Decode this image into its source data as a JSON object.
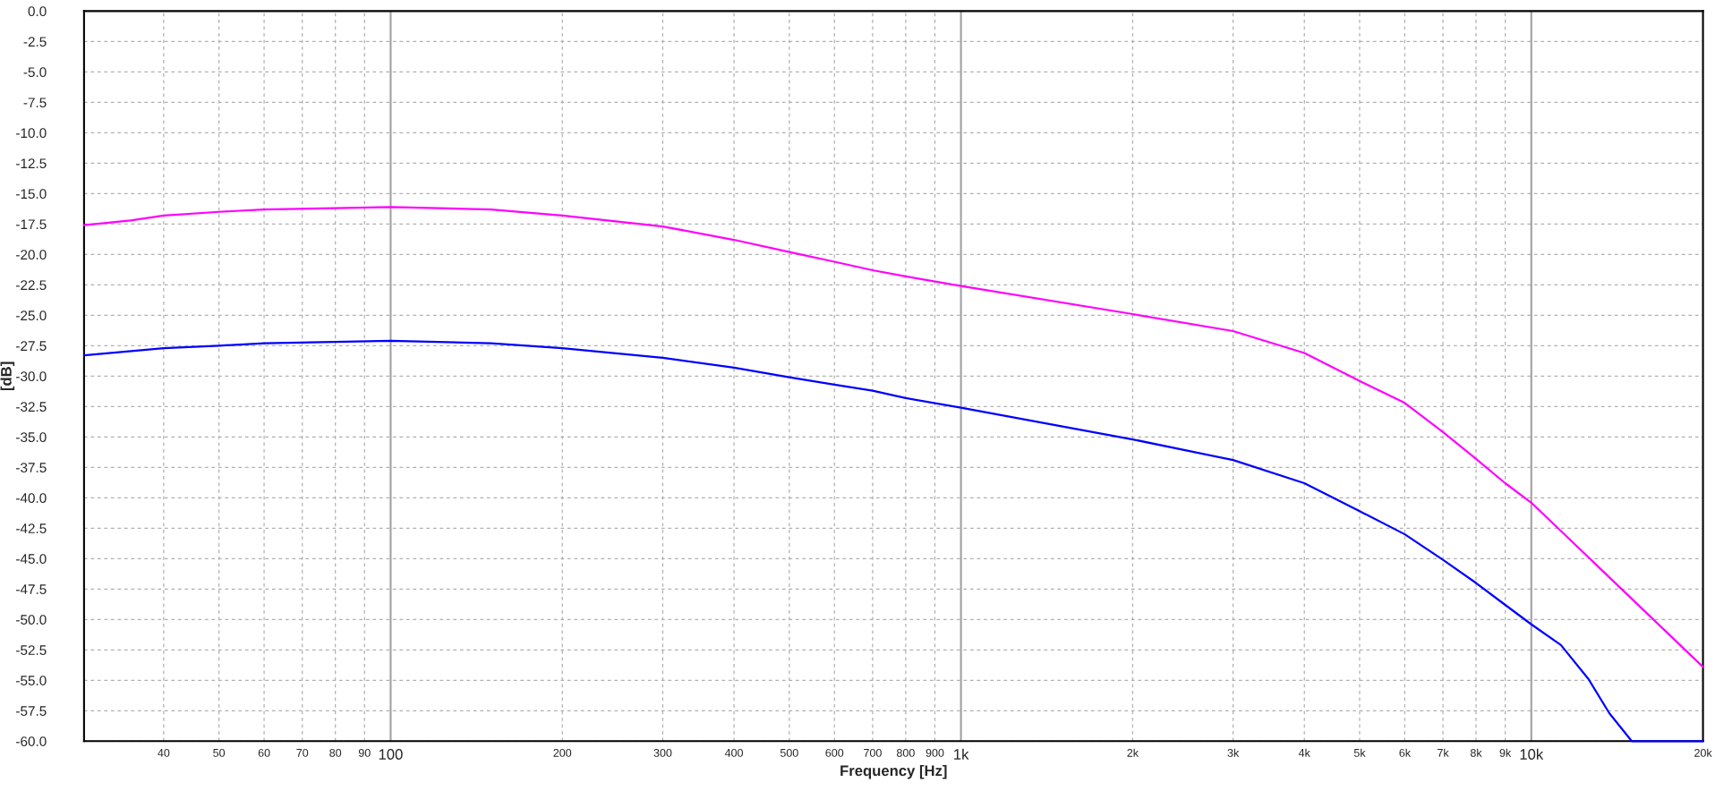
{
  "chart_data": {
    "type": "line",
    "xlabel": "Frequency [Hz]",
    "ylabel": "[dB]",
    "log": "x",
    "xlim": [
      29,
      20000
    ],
    "ylim": [
      -60,
      0
    ],
    "xticks": [
      40,
      50,
      60,
      70,
      80,
      90,
      100,
      200,
      300,
      400,
      500,
      600,
      700,
      800,
      900,
      {
        "value": 1000,
        "label": "1k"
      },
      {
        "value": 2000,
        "label": "2k"
      },
      {
        "value": 3000,
        "label": "3k"
      },
      {
        "value": 4000,
        "label": "4k"
      },
      {
        "value": 5000,
        "label": "5k"
      },
      {
        "value": 6000,
        "label": "6k"
      },
      {
        "value": 7000,
        "label": "7k"
      },
      {
        "value": 8000,
        "label": "8k"
      },
      {
        "value": 9000,
        "label": "9k"
      },
      {
        "value": 10000,
        "label": "10k"
      },
      {
        "value": 20000,
        "label": "20k"
      }
    ],
    "yticks": [
      {
        "value": 0,
        "label": "0.0"
      },
      {
        "value": -2.5,
        "label": "-2.5"
      },
      {
        "value": -5,
        "label": "-5.0"
      },
      {
        "value": -7.5,
        "label": "-7.5"
      },
      {
        "value": -10,
        "label": "-10.0"
      },
      {
        "value": -12.5,
        "label": "-12.5"
      },
      {
        "value": -15,
        "label": "-15.0"
      },
      {
        "value": -17.5,
        "label": "-17.5"
      },
      {
        "value": -20,
        "label": "-20.0"
      },
      {
        "value": -22.5,
        "label": "-22.5"
      },
      {
        "value": -25,
        "label": "-25.0"
      },
      {
        "value": -27.5,
        "label": "-27.5"
      },
      {
        "value": -30,
        "label": "-30.0"
      },
      {
        "value": -32.5,
        "label": "-32.5"
      },
      {
        "value": -35,
        "label": "-35.0"
      },
      {
        "value": -37.5,
        "label": "-37.5"
      },
      {
        "value": -40,
        "label": "-40.0"
      },
      {
        "value": -42.5,
        "label": "-42.5"
      },
      {
        "value": -45,
        "label": "-45.0"
      },
      {
        "value": -47.5,
        "label": "-47.5"
      },
      {
        "value": -50,
        "label": "-50.0"
      },
      {
        "value": -52.5,
        "label": "-52.5"
      },
      {
        "value": -55,
        "label": "-55.0"
      },
      {
        "value": -57.5,
        "label": "-57.5"
      },
      {
        "value": -60,
        "label": "-60.0"
      }
    ],
    "grid": true,
    "marker": "none",
    "line_style": "solid",
    "series": [
      {
        "color": "#ff00ff",
        "x": [
          29,
          35,
          40,
          50,
          60,
          80,
          100,
          150,
          200,
          300,
          400,
          500,
          600,
          700,
          800,
          1000,
          2000,
          3000,
          4000,
          5000,
          6000,
          7000,
          8000,
          9000,
          10000,
          20000
        ],
        "values": [
          -17.6,
          -17.2,
          -16.8,
          -16.5,
          -16.3,
          -16.2,
          -16.1,
          -16.3,
          -16.8,
          -17.7,
          -18.8,
          -19.8,
          -20.6,
          -21.3,
          -21.8,
          -22.6,
          -24.9,
          -26.3,
          -28.1,
          -30.4,
          -32.2,
          -34.6,
          -36.8,
          -38.8,
          -40.4,
          -53.9
        ]
      },
      {
        "color": "#0000ff",
        "x": [
          29,
          40,
          50,
          60,
          100,
          150,
          200,
          300,
          400,
          500,
          600,
          700,
          800,
          1000,
          2000,
          3000,
          4000,
          5000,
          6000,
          7000,
          8000,
          9000,
          10000,
          11270,
          12600,
          13700,
          15000,
          20000
        ],
        "values": [
          -28.3,
          -27.7,
          -27.5,
          -27.3,
          -27.1,
          -27.3,
          -27.7,
          -28.5,
          -29.3,
          -30.1,
          -30.7,
          -31.2,
          -31.8,
          -32.6,
          -35.2,
          -36.9,
          -38.8,
          -41.1,
          -43.0,
          -45.1,
          -47.0,
          -48.8,
          -50.4,
          -52.1,
          -54.9,
          -57.7,
          -60,
          -60
        ]
      }
    ]
  }
}
